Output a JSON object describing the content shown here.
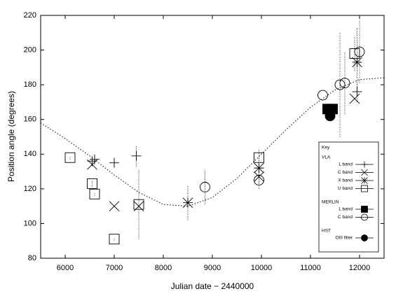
{
  "chart_data": {
    "type": "scatter",
    "x_label": "Julian date − 2440000",
    "y_label": "Position angle (degrees)",
    "xlim": [
      5500,
      12500
    ],
    "ylim": [
      80,
      220
    ],
    "xticks": [
      6000,
      7000,
      8000,
      9000,
      10000,
      11000,
      12000
    ],
    "yticks": [
      80,
      100,
      120,
      140,
      160,
      180,
      200,
      220
    ],
    "legend_title": "Key",
    "curve": {
      "x": [
        5500,
        6000,
        6500,
        7000,
        7500,
        8000,
        8500,
        9000,
        9500,
        10000,
        10500,
        11000,
        11500,
        12000,
        12500
      ],
      "values": [
        158,
        149,
        139,
        128,
        118,
        111,
        110,
        115,
        126,
        140,
        154,
        167,
        177,
        183,
        184
      ]
    },
    "groups": [
      {
        "name": "VLA",
        "series": [
          {
            "name": "L band",
            "marker": "plus",
            "color": "#000",
            "x": [
              6550,
              6600,
              7000,
              7450,
              11950
            ],
            "values": [
              136,
              137,
              135,
              139,
              176
            ],
            "errors": [
              2,
              2,
              2,
              6,
              6
            ]
          },
          {
            "name": "C band",
            "marker": "cross",
            "color": "#000",
            "x": [
              6550,
              7000,
              7500,
              9950,
              11900
            ],
            "values": [
              134,
              110,
              110,
              127,
              172
            ],
            "errors": [
              null,
              null,
              null,
              4,
              null
            ]
          },
          {
            "name": "X band",
            "marker": "star",
            "color": "#000",
            "x": [
              8500,
              9950,
              11950
            ],
            "values": [
              112,
              132,
              193
            ],
            "errors": [
              10,
              6,
              20
            ]
          },
          {
            "name": "U band",
            "marker": "square",
            "color": "#000",
            "x": [
              6100,
              6550,
              6600,
              7000,
              7500,
              9950,
              11900
            ],
            "values": [
              138,
              123,
              117,
              91,
              111,
              138,
              198
            ],
            "errors": [
              1,
              2,
              1,
              1,
              20,
              5,
              10
            ]
          }
        ]
      },
      {
        "name": "MERLIN",
        "series": [
          {
            "name": "L band",
            "marker": "filled-square",
            "color": "#000",
            "x": [
              11350,
              11450
            ],
            "values": [
              166,
              166
            ],
            "errors": [
              null,
              null
            ]
          },
          {
            "name": "C band",
            "marker": "circle",
            "color": "#000",
            "x": [
              8850,
              9950,
              11250,
              11600,
              11700,
              12000
            ],
            "values": [
              121,
              125,
              174,
              180,
              181,
              199
            ],
            "errors": [
              10,
              5,
              null,
              30,
              18,
              18
            ]
          }
        ]
      },
      {
        "name": "HST",
        "series": [
          {
            "name": "OIII filter",
            "marker": "filled-circle",
            "color": "#000",
            "x": [
              11400
            ],
            "values": [
              162
            ],
            "errors": [
              null
            ]
          }
        ]
      }
    ]
  }
}
